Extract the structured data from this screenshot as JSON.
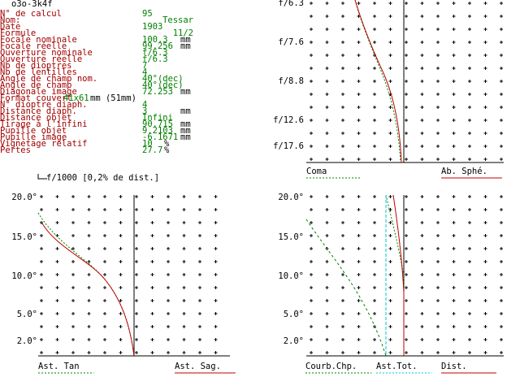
{
  "title": "o3o-3k4f",
  "params": [
    {
      "label": "N° de calcul",
      "value": "95"
    },
    {
      "label": "Nom:",
      "value": "Tessar"
    },
    {
      "label": "Date",
      "value": "1903"
    },
    {
      "label": "Formule",
      "value": "11/2"
    },
    {
      "label": "Focale nominale",
      "value": "100.3",
      "unit": "mm"
    },
    {
      "label": "Focale réelle",
      "value": "99.256",
      "unit": "mm"
    },
    {
      "label": "Ouverture nominale",
      "value": "f/6.3"
    },
    {
      "label": "Ouverture réelle",
      "value": "f/6.3"
    },
    {
      "label": "Nb de dioptres",
      "value": "7"
    },
    {
      "label": "Nb de lentilles",
      "value": "4"
    },
    {
      "label": "Angle de champ nom.",
      "value": "40°(dec)"
    },
    {
      "label": "Angle de champ",
      "value": "40°(dec)"
    },
    {
      "label": "Diagonale image",
      "value": "72.253",
      "unit": "mm"
    },
    {
      "label": "Format couvert",
      "value": "41x61",
      "unit": "mm (51mm)"
    },
    {
      "label": "N° dioptre diaph.",
      "value": "4"
    },
    {
      "label": "Distance diaph.",
      "value": "3",
      "unit": "mm"
    },
    {
      "label": "Distance objet",
      "value": "Infini"
    },
    {
      "label": "Tirage à l'infini",
      "value": "90.715",
      "unit": "mm"
    },
    {
      "label": "Pupille objet",
      "value": "9.2103",
      "unit": "mm"
    },
    {
      "label": "Pupille image",
      "value": "-6.1671",
      "unit": "mm"
    },
    {
      "label": "Vignetage relatif",
      "value": "10",
      "unit": "%"
    },
    {
      "label": "Pertes",
      "value": "27.7",
      "unit": "%"
    }
  ],
  "top_right": {
    "y_labels": [
      "f/6.3",
      "f/7.6",
      "f/8.8",
      "f/12.6",
      "f/17.6"
    ],
    "legends": [
      "Coma",
      "Ab. Sphé."
    ]
  },
  "bottom_left": {
    "header": "f/1000 [0,2% de dist.]",
    "y_labels": [
      "20.0°",
      "15.0°",
      "10.0°",
      "5.0°",
      "2.0°"
    ],
    "legends": [
      "Ast. Tan",
      "Ast. Sag."
    ]
  },
  "bottom_right": {
    "y_labels": [
      "20.0°",
      "15.0°",
      "10.0°",
      "5.0°",
      "2.0°"
    ],
    "legends": [
      "Courb.Chp.",
      "Ast.Tot.",
      "Dist."
    ]
  }
}
